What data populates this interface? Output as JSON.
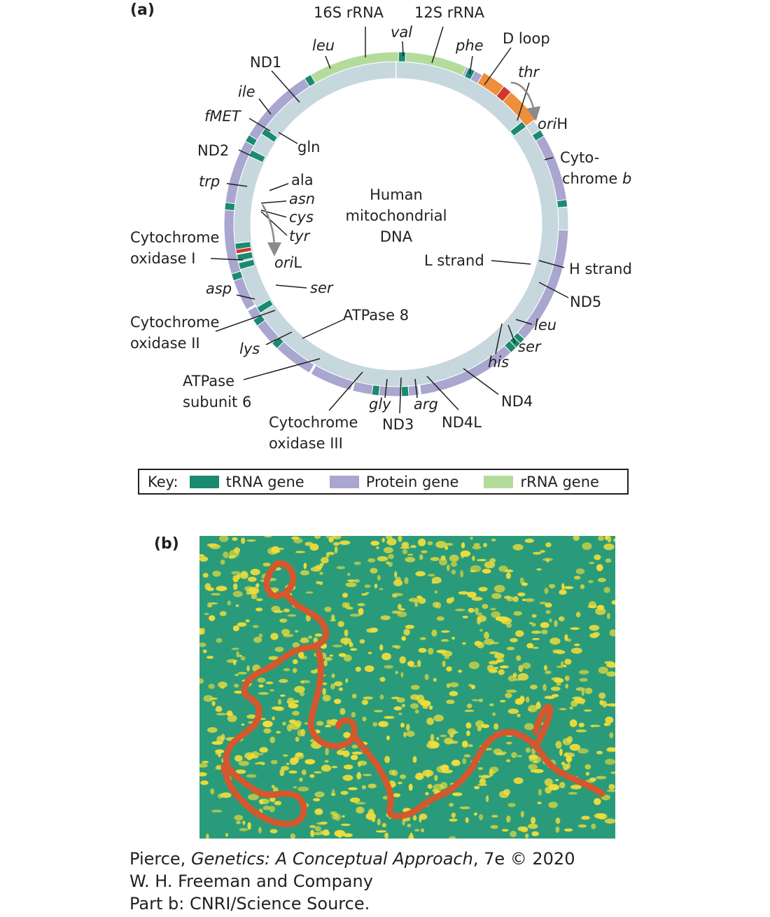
{
  "panel_a_label": "(a)",
  "panel_b_label": "(b)",
  "center_text": [
    "Human",
    "mitochondrial",
    "DNA"
  ],
  "colors": {
    "trna": "#1b8a70",
    "protein": "#a9a6cf",
    "rrna": "#b3dc9c",
    "dloop": "#ee8f3b",
    "inner": "#c6d7de",
    "origin_red": "#d0372d",
    "dna_strand": "#d4572d",
    "photo_bg": "#2a9b7a",
    "photo_dots": "#f2dd3a"
  },
  "labels": {
    "s16": "16S rRNA",
    "s12": "12S rRNA",
    "val": "val",
    "leu_top": "leu",
    "phe": "phe",
    "dloop": "D loop",
    "nd1": "ND1",
    "thr": "thr",
    "ile": "ile",
    "orih_a": "ori",
    "orih_b": "H",
    "fmet": "fMET",
    "gln": "gln",
    "nd2": "ND2",
    "cyto_b1": "Cyto-",
    "cyto_b2": "chrome ",
    "cyto_b3": "b",
    "trp": "trp",
    "ala": "ala",
    "asn": "asn",
    "cys": "cys",
    "tyr": "tyr",
    "coxi1": "Cytochrome",
    "coxi2": "oxidase I",
    "oril_a": "ori",
    "oril_b": "L",
    "lstrand": "L strand",
    "hstrand": "H strand",
    "asp": "asp",
    "ser_left": "ser",
    "nd5": "ND5",
    "atp8": "ATPase 8",
    "coxii1": "Cytochrome",
    "coxii2": "oxidase II",
    "leu_right": "leu",
    "ser_right": "ser",
    "lys": "lys",
    "his": "his",
    "atp6_1": "ATPase",
    "atp6_2": "subunit 6",
    "nd4": "ND4",
    "gly": "gly",
    "arg": "arg",
    "coxiii1": "Cytochrome",
    "coxiii2": "oxidase III",
    "nd3": "ND3",
    "nd4l": "ND4L"
  },
  "key": {
    "title": "Key:",
    "trna": "tRNA gene",
    "protein": "Protein gene",
    "rrna": "rRNA gene"
  },
  "credits": {
    "line1_a": "Pierce, ",
    "line1_b": "Genetics: A Conceptual Approach",
    "line1_c": ", 7e © 2020",
    "line2": "W. H. Freeman and Company",
    "line3": "Part b: CNRI/Science Source."
  }
}
